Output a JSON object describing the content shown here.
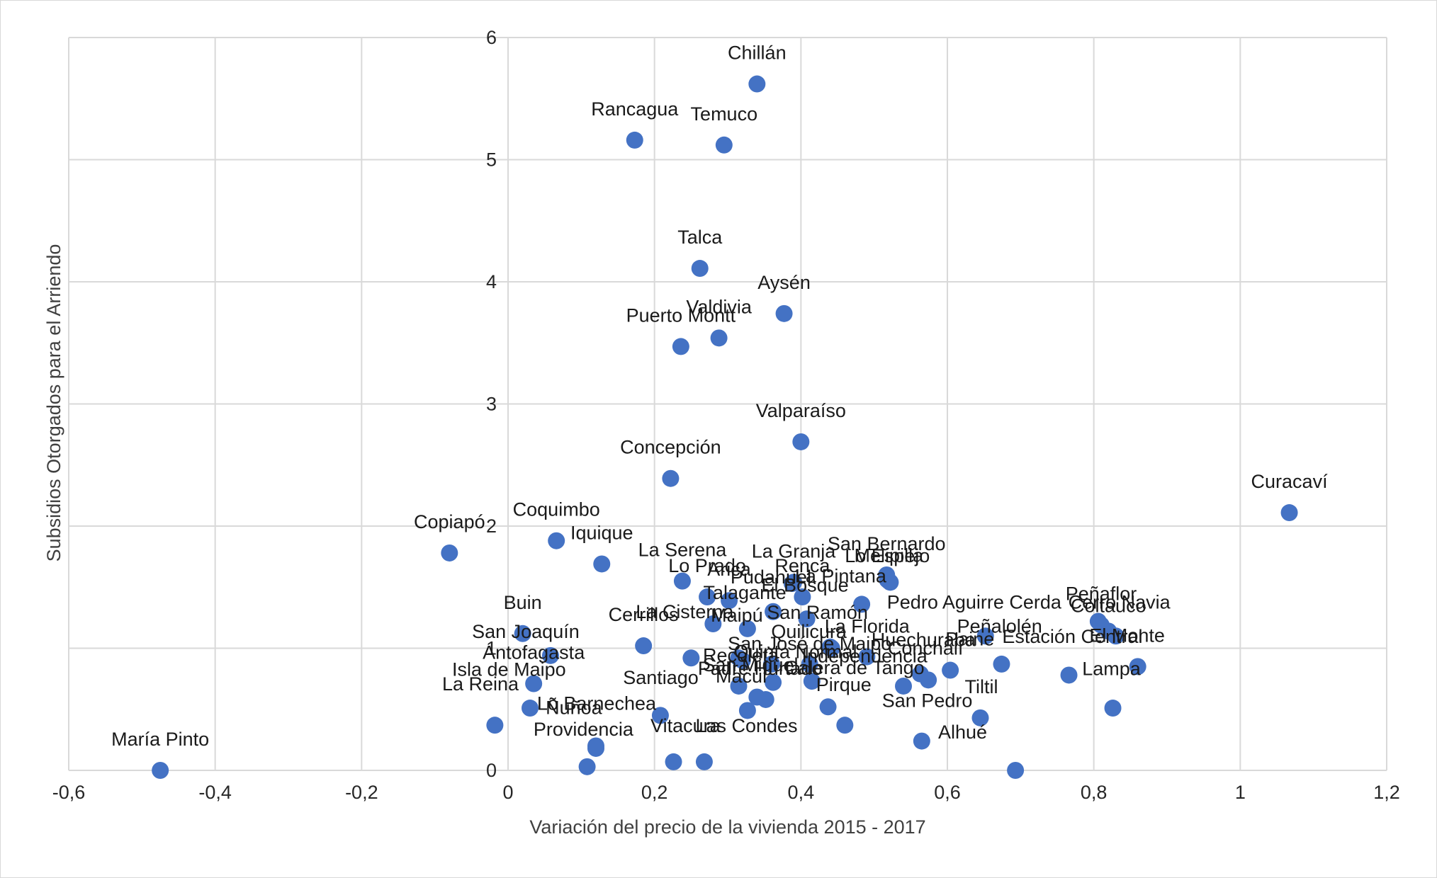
{
  "chart_data": {
    "type": "scatter",
    "xlabel": "Variación del precio de la vivienda 2015 - 2017",
    "ylabel": "Subsidios Otorgados para el Arriendo",
    "xlim": [
      -0.6,
      1.2
    ],
    "ylim": [
      0,
      6
    ],
    "x_ticks": [
      "-0,6",
      "-0,4",
      "-0,2",
      "0",
      "0,2",
      "0,4",
      "0,6",
      "0,8",
      "1",
      "1,2"
    ],
    "y_ticks": [
      "0",
      "1",
      "2",
      "3",
      "4",
      "5",
      "6"
    ],
    "grid": true,
    "marker_color": "#4472c4",
    "points": [
      {
        "label": "Chillán",
        "x": 0.34,
        "y": 5.62
      },
      {
        "label": "Rancagua",
        "x": 0.173,
        "y": 5.16
      },
      {
        "label": "Temuco",
        "x": 0.295,
        "y": 5.12
      },
      {
        "label": "Talca",
        "x": 0.262,
        "y": 4.11
      },
      {
        "label": "Aysén",
        "x": 0.377,
        "y": 3.74
      },
      {
        "label": "Valdivia",
        "x": 0.288,
        "y": 3.54
      },
      {
        "label": "Puerto Montt",
        "x": 0.236,
        "y": 3.47
      },
      {
        "label": "Valparaíso",
        "x": 0.4,
        "y": 2.69
      },
      {
        "label": "Concepción",
        "x": 0.222,
        "y": 2.39
      },
      {
        "label": "Curacaví",
        "x": 1.067,
        "y": 2.11
      },
      {
        "label": "Copiapó",
        "x": -0.08,
        "y": 1.78
      },
      {
        "label": "Coquimbo",
        "x": 0.066,
        "y": 1.88
      },
      {
        "label": "Iquique",
        "x": 0.128,
        "y": 1.69
      },
      {
        "label": "La Serena",
        "x": 0.238,
        "y": 1.55
      },
      {
        "label": "Lo Prado",
        "x": 0.272,
        "y": 1.42
      },
      {
        "label": "Arica",
        "x": 0.302,
        "y": 1.39
      },
      {
        "label": "La Granja",
        "x": 0.39,
        "y": 1.54
      },
      {
        "label": "Renca",
        "x": 0.402,
        "y": 1.42
      },
      {
        "label": "Pudahuel",
        "x": 0.388,
        "y": 1.53
      },
      {
        "label": "San Bernardo",
        "x": 0.517,
        "y": 1.6
      },
      {
        "label": "Lo Espejo",
        "x": 0.518,
        "y": 1.56
      },
      {
        "label": "Melipilla",
        "x": 0.52,
        "y": 1.55
      },
      {
        "label": "La Pintana",
        "x": 0.522,
        "y": 1.54
      },
      {
        "label": "El Bosque",
        "x": 0.483,
        "y": 1.36
      },
      {
        "label": "Talagante",
        "x": 0.362,
        "y": 1.3
      },
      {
        "label": "San Ramón",
        "x": 0.408,
        "y": 1.24
      },
      {
        "label": "Pedro Aguirre Cerda",
        "x": 0.806,
        "y": 1.22
      },
      {
        "label": "Peñaflor",
        "x": 0.81,
        "y": 1.19
      },
      {
        "label": "Cerro Navia",
        "x": 0.83,
        "y": 1.1
      },
      {
        "label": "Coltauco",
        "x": 0.82,
        "y": 1.14
      },
      {
        "label": "Buin",
        "x": 0.02,
        "y": 1.12
      },
      {
        "label": "Maipú",
        "x": 0.327,
        "y": 1.16
      },
      {
        "label": "La Cisterna",
        "x": 0.28,
        "y": 1.2
      },
      {
        "label": "Peñalolén",
        "x": 0.652,
        "y": 1.1
      },
      {
        "label": "Cerrillos",
        "x": 0.185,
        "y": 1.02
      },
      {
        "label": "La Florida",
        "x": 0.442,
        "y": 1.0
      },
      {
        "label": "San Joaquín",
        "x": 0.058,
        "y": 0.94
      },
      {
        "label": "Quilicura",
        "x": 0.44,
        "y": 1.01
      },
      {
        "label": "Huechuraba",
        "x": 0.49,
        "y": 0.93
      },
      {
        "label": "Estación Central",
        "x": 0.674,
        "y": 0.87
      },
      {
        "label": "El Monte",
        "x": 0.86,
        "y": 0.85
      },
      {
        "label": "San José de Maipo",
        "x": 0.412,
        "y": 0.87
      },
      {
        "label": "Conchalí",
        "x": 0.604,
        "y": 0.82
      },
      {
        "label": "Paine",
        "x": 0.563,
        "y": 0.79
      },
      {
        "label": "Independencia",
        "x": 0.574,
        "y": 0.74
      },
      {
        "label": "Antofagasta",
        "x": 0.035,
        "y": 0.71
      },
      {
        "label": "Recoleta",
        "x": 0.25,
        "y": 0.92
      },
      {
        "label": "Quinta Normal",
        "x": 0.315,
        "y": 0.92
      },
      {
        "label": "Padre Hurtado",
        "x": 0.32,
        "y": 0.9
      },
      {
        "label": "San Miguel",
        "x": 0.36,
        "y": 0.87
      },
      {
        "label": "Calera de Tango",
        "x": 0.415,
        "y": 0.73
      },
      {
        "label": "Macul",
        "x": 0.362,
        "y": 0.72
      },
      {
        "label": "Lampa",
        "x": 0.766,
        "y": 0.78
      },
      {
        "label": "Tiltil",
        "x": 0.54,
        "y": 0.69
      },
      {
        "label": "Santiago",
        "x": 0.315,
        "y": 0.69
      },
      {
        "label": "Isla de Maipo",
        "x": 0.34,
        "y": 0.6
      },
      {
        "label": "Pirque",
        "x": 0.352,
        "y": 0.58
      },
      {
        "label": "La Reina",
        "x": 0.03,
        "y": 0.51
      },
      {
        "label": "Lo Barnechea",
        "x": 0.208,
        "y": 0.45
      },
      {
        "label": "Ñuñoa",
        "x": 0.327,
        "y": 0.49
      },
      {
        "label": "San Pedro",
        "x": 0.437,
        "y": 0.52
      },
      {
        "label": "Alhué",
        "x": 0.826,
        "y": 0.51
      },
      {
        "label": "Las Condes",
        "x": 0.645,
        "y": 0.43
      },
      {
        "label": "Vitacura",
        "x": 0.46,
        "y": 0.37
      },
      {
        "label": "Providencia",
        "x": -0.018,
        "y": 0.37
      },
      {
        "label": "María Pinto",
        "x": 0.12,
        "y": 0.2
      },
      {
        "label": "Lo Barnechea 2",
        "x": 0.12,
        "y": 0.18
      },
      {
        "label": "Las Condes 2",
        "x": 0.565,
        "y": 0.24
      },
      {
        "label": "Vitacura 2",
        "x": 0.226,
        "y": 0.07
      },
      {
        "label": "Providencia 2",
        "x": 0.268,
        "y": 0.07
      },
      {
        "label": "Ñuñoa 2",
        "x": 0.108,
        "y": 0.03
      },
      {
        "label": "María Pinto 2",
        "x": -0.475,
        "y": 0.0
      },
      {
        "label": "Alhué 2",
        "x": 0.693,
        "y": 0.0
      }
    ],
    "labels": [
      {
        "text": "Chillán",
        "x": 0.34,
        "y": 5.62,
        "dx": 0,
        "dy": -35,
        "anchor": "middle"
      },
      {
        "text": "Rancagua",
        "x": 0.173,
        "y": 5.16,
        "dx": 0,
        "dy": -35,
        "anchor": "middle"
      },
      {
        "text": "Temuco",
        "x": 0.295,
        "y": 5.12,
        "dx": 0,
        "dy": -35,
        "anchor": "middle"
      },
      {
        "text": "Talca",
        "x": 0.262,
        "y": 4.11,
        "dx": 0,
        "dy": -35,
        "anchor": "middle"
      },
      {
        "text": "Aysén",
        "x": 0.377,
        "y": 3.74,
        "dx": 0,
        "dy": -35,
        "anchor": "middle"
      },
      {
        "text": "Valdivia",
        "x": 0.288,
        "y": 3.54,
        "dx": 0,
        "dy": -35,
        "anchor": "middle"
      },
      {
        "text": "Puerto Montt",
        "x": 0.236,
        "y": 3.47,
        "dx": 0,
        "dy": -35,
        "anchor": "middle"
      },
      {
        "text": "Valparaíso",
        "x": 0.4,
        "y": 2.69,
        "dx": 0,
        "dy": -35,
        "anchor": "middle"
      },
      {
        "text": "Concepción",
        "x": 0.222,
        "y": 2.39,
        "dx": 0,
        "dy": -35,
        "anchor": "middle"
      },
      {
        "text": "Curacaví",
        "x": 1.067,
        "y": 2.11,
        "dx": 0,
        "dy": -35,
        "anchor": "middle"
      },
      {
        "text": "Copiapó",
        "x": -0.08,
        "y": 1.78,
        "dx": 0,
        "dy": -35,
        "anchor": "middle"
      },
      {
        "text": "Coquimbo",
        "x": 0.066,
        "y": 1.88,
        "dx": 0,
        "dy": -35,
        "anchor": "middle"
      },
      {
        "text": "Iquique",
        "x": 0.128,
        "y": 1.69,
        "dx": 0,
        "dy": -35,
        "anchor": "middle"
      },
      {
        "text": "La Serena",
        "x": 0.238,
        "y": 1.55,
        "dx": 0,
        "dy": -35,
        "anchor": "middle"
      },
      {
        "text": "Lo Prado",
        "x": 0.272,
        "y": 1.42,
        "dx": 0,
        "dy": -35,
        "anchor": "middle"
      },
      {
        "text": "Arica",
        "x": 0.302,
        "y": 1.39,
        "dx": 0,
        "dy": -35,
        "anchor": "middle"
      },
      {
        "text": "La Granja",
        "x": 0.39,
        "y": 1.54,
        "dx": 0,
        "dy": -35,
        "anchor": "middle"
      },
      {
        "text": "Renca",
        "x": 0.402,
        "y": 1.42,
        "dx": 0,
        "dy": -35,
        "anchor": "middle"
      },
      {
        "text": "Pudahuel",
        "x": 0.388,
        "y": 1.53,
        "dx": -30,
        "dy": 0,
        "anchor": "middle"
      },
      {
        "text": "San Bernardo",
        "x": 0.517,
        "y": 1.6,
        "dx": 0,
        "dy": -35,
        "anchor": "middle"
      },
      {
        "text": "Lo Espejo",
        "x": 0.518,
        "y": 1.56,
        "dx": 0,
        "dy": -25,
        "anchor": "middle"
      },
      {
        "text": "Melipilla",
        "x": 0.52,
        "y": 1.55,
        "dx": 0,
        "dy": -27,
        "anchor": "middle"
      },
      {
        "text": "La Pintana",
        "x": 0.522,
        "y": 1.54,
        "dx": -70,
        "dy": 0,
        "anchor": "middle"
      },
      {
        "text": "El Bosque",
        "x": 0.483,
        "y": 1.36,
        "dx": -80,
        "dy": -18,
        "anchor": "middle"
      },
      {
        "text": "Talagante",
        "x": 0.362,
        "y": 1.3,
        "dx": -40,
        "dy": -18,
        "anchor": "middle"
      },
      {
        "text": "San Ramón",
        "x": 0.408,
        "y": 1.24,
        "dx": 15,
        "dy": 0,
        "anchor": "middle"
      },
      {
        "text": "Pedro Aguirre Cerda",
        "x": 0.806,
        "y": 1.22,
        "dx": -175,
        "dy": -18,
        "anchor": "middle"
      },
      {
        "text": "Peñaflor",
        "x": 0.81,
        "y": 1.19,
        "dx": 0,
        "dy": -35,
        "anchor": "middle"
      },
      {
        "text": "Cerro Navia",
        "x": 0.83,
        "y": 1.1,
        "dx": 5,
        "dy": -39,
        "anchor": "middle"
      },
      {
        "text": "Coltauco",
        "x": 0.82,
        "y": 1.14,
        "dx": 0,
        "dy": -27,
        "anchor": "middle"
      },
      {
        "text": "Buin",
        "x": 0.02,
        "y": 1.12,
        "dx": 0,
        "dy": -35,
        "anchor": "middle"
      },
      {
        "text": "Maipú",
        "x": 0.327,
        "y": 1.16,
        "dx": -15,
        "dy": -10,
        "anchor": "middle"
      },
      {
        "text": "La Cisterna",
        "x": 0.28,
        "y": 1.2,
        "dx": -40,
        "dy": -8,
        "anchor": "middle"
      },
      {
        "text": "Peñalolén",
        "x": 0.652,
        "y": 1.1,
        "dx": 20,
        "dy": -5,
        "anchor": "middle"
      },
      {
        "text": "Cerrillos",
        "x": 0.185,
        "y": 1.02,
        "dx": 0,
        "dy": -35,
        "anchor": "middle"
      },
      {
        "text": "La Florida",
        "x": 0.442,
        "y": 1.0,
        "dx": 50,
        "dy": -22,
        "anchor": "middle"
      },
      {
        "text": "San Joaquín",
        "x": 0.058,
        "y": 0.94,
        "dx": -35,
        "dy": -25,
        "anchor": "middle"
      },
      {
        "text": "Quilicura",
        "x": 0.44,
        "y": 1.01,
        "dx": -30,
        "dy": -13,
        "anchor": "middle"
      },
      {
        "text": "Huechuraba",
        "x": 0.49,
        "y": 0.93,
        "dx": 80,
        "dy": -15,
        "anchor": "middle"
      },
      {
        "text": "Estación Central",
        "x": 0.674,
        "y": 0.87,
        "dx": 100,
        "dy": -30,
        "anchor": "middle"
      },
      {
        "text": "El Monte",
        "x": 0.86,
        "y": 0.85,
        "dx": -15,
        "dy": -35,
        "anchor": "middle"
      },
      {
        "text": "San José de Maipo",
        "x": 0.412,
        "y": 0.87,
        "dx": 0,
        "dy": -20,
        "anchor": "middle"
      },
      {
        "text": "Conchalí",
        "x": 0.604,
        "y": 0.82,
        "dx": -35,
        "dy": -22,
        "anchor": "middle"
      },
      {
        "text": "Paine",
        "x": 0.563,
        "y": 0.79,
        "dx": 70,
        "dy": -40,
        "anchor": "middle"
      },
      {
        "text": "Independencia",
        "x": 0.574,
        "y": 0.74,
        "dx": -90,
        "dy": -25,
        "anchor": "middle"
      },
      {
        "text": "Antofagasta",
        "x": 0.035,
        "y": 0.71,
        "dx": 0,
        "dy": -35,
        "anchor": "middle"
      },
      {
        "text": "Recoleta",
        "x": 0.25,
        "y": 0.92,
        "dx": 70,
        "dy": 5,
        "anchor": "middle"
      },
      {
        "text": "Quinta Normal",
        "x": 0.315,
        "y": 0.92,
        "dx": 80,
        "dy": 0,
        "anchor": "middle"
      },
      {
        "text": "Padre Hurtado",
        "x": 0.32,
        "y": 0.9,
        "dx": 25,
        "dy": 20,
        "anchor": "middle"
      },
      {
        "text": "San Miguel",
        "x": 0.36,
        "y": 0.87,
        "dx": -30,
        "dy": 10,
        "anchor": "middle"
      },
      {
        "text": "Calera de Tango",
        "x": 0.415,
        "y": 0.73,
        "dx": 60,
        "dy": -10,
        "anchor": "middle"
      },
      {
        "text": "Macul",
        "x": 0.362,
        "y": 0.72,
        "dx": -45,
        "dy": 0,
        "anchor": "middle"
      },
      {
        "text": "Lampa",
        "x": 0.766,
        "y": 0.78,
        "dx": 60,
        "dy": 0,
        "anchor": "middle"
      },
      {
        "text": "Tiltil",
        "x": 0.54,
        "y": 0.69,
        "dx": 110,
        "dy": 10,
        "anchor": "middle"
      },
      {
        "text": "Santiago",
        "x": 0.315,
        "y": 0.69,
        "dx": -110,
        "dy": -3,
        "anchor": "middle"
      },
      {
        "text": "Isla de Maipo",
        "x": 0.34,
        "y": 0.6,
        "dx": -350,
        "dy": -30,
        "anchor": "middle"
      },
      {
        "text": "Pirque",
        "x": 0.352,
        "y": 0.58,
        "dx": 110,
        "dy": -12,
        "anchor": "middle"
      },
      {
        "text": "La Reina",
        "x": 0.03,
        "y": 0.51,
        "dx": -70,
        "dy": -25,
        "anchor": "middle"
      },
      {
        "text": "Lo Barnechea",
        "x": 0.208,
        "y": 0.45,
        "dx": -90,
        "dy": -8,
        "anchor": "middle"
      },
      {
        "text": "Ñuñoa",
        "x": 0.327,
        "y": 0.49,
        "dx": -245,
        "dy": 5,
        "anchor": "middle"
      },
      {
        "text": "San Pedro",
        "x": 0.437,
        "y": 0.52,
        "dx": 140,
        "dy": 0,
        "anchor": "middle"
      },
      {
        "text": "Alhué",
        "x": 0.826,
        "y": 0.51,
        "dx": -212,
        "dy": 43,
        "anchor": "middle"
      },
      {
        "text": "Las Condes",
        "x": 0.645,
        "y": 0.43,
        "dx": -330,
        "dy": 20,
        "anchor": "middle"
      },
      {
        "text": "Vitacura",
        "x": 0.46,
        "y": 0.37,
        "dx": -225,
        "dy": 10,
        "anchor": "middle"
      },
      {
        "text": "Providencia",
        "x": -0.018,
        "y": 0.37,
        "dx": 125,
        "dy": 15,
        "anchor": "middle"
      },
      {
        "text": "María Pinto",
        "x": -0.475,
        "y": 0.0,
        "dx": 0,
        "dy": -35,
        "anchor": "middle"
      }
    ]
  }
}
